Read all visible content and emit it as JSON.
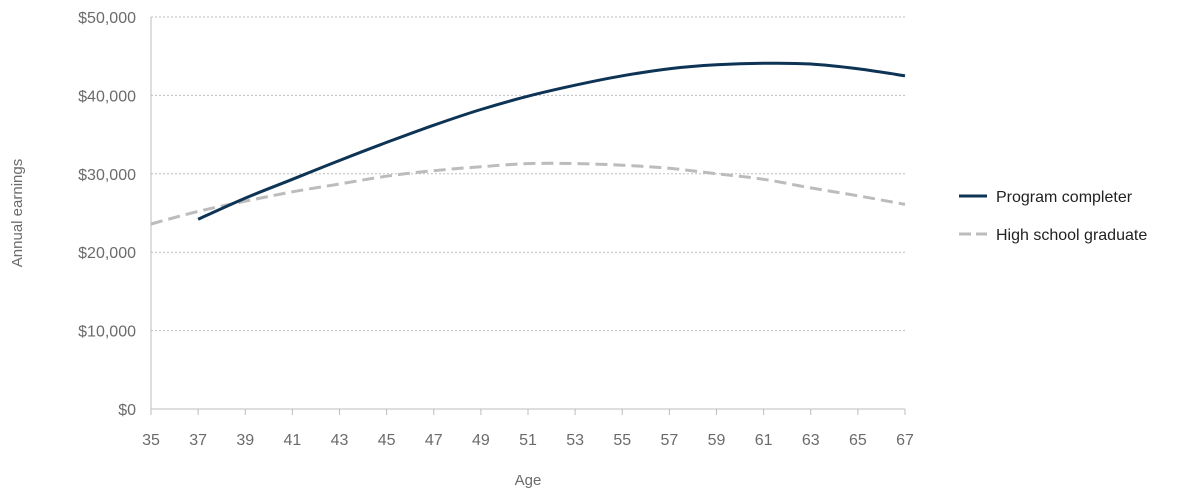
{
  "chart_data": {
    "type": "line",
    "xlabel": "Age",
    "ylabel": "Annual earnings",
    "xlim": [
      35,
      67
    ],
    "ylim": [
      0,
      50000
    ],
    "x_ticks": [
      35,
      37,
      39,
      41,
      43,
      45,
      47,
      49,
      51,
      53,
      55,
      57,
      59,
      61,
      63,
      65,
      67
    ],
    "y_ticks": [
      0,
      10000,
      20000,
      30000,
      40000,
      50000
    ],
    "y_tick_labels": [
      "$0",
      "$10,000",
      "$20,000",
      "$30,000",
      "$40,000",
      "$50,000"
    ],
    "grid": "horizontal dotted",
    "legend_position": "right",
    "series": [
      {
        "name": "Program completer",
        "color": "#0d3355",
        "style": "solid",
        "x": [
          37,
          39,
          41,
          43,
          45,
          47,
          49,
          51,
          53,
          55,
          57,
          59,
          61,
          63,
          65,
          67
        ],
        "values": [
          24200,
          26900,
          29300,
          31700,
          34000,
          36200,
          38200,
          39900,
          41300,
          42500,
          43400,
          43900,
          44100,
          44000,
          43400,
          42500
        ]
      },
      {
        "name": "High school graduate",
        "color": "#bcbcbc",
        "style": "dashed",
        "x": [
          35,
          37,
          39,
          41,
          43,
          45,
          47,
          49,
          51,
          53,
          55,
          57,
          59,
          61,
          63,
          65,
          67
        ],
        "values": [
          23600,
          25200,
          26500,
          27700,
          28700,
          29700,
          30400,
          30900,
          31300,
          31300,
          31100,
          30700,
          30000,
          29300,
          28200,
          27200,
          26100
        ]
      }
    ]
  }
}
